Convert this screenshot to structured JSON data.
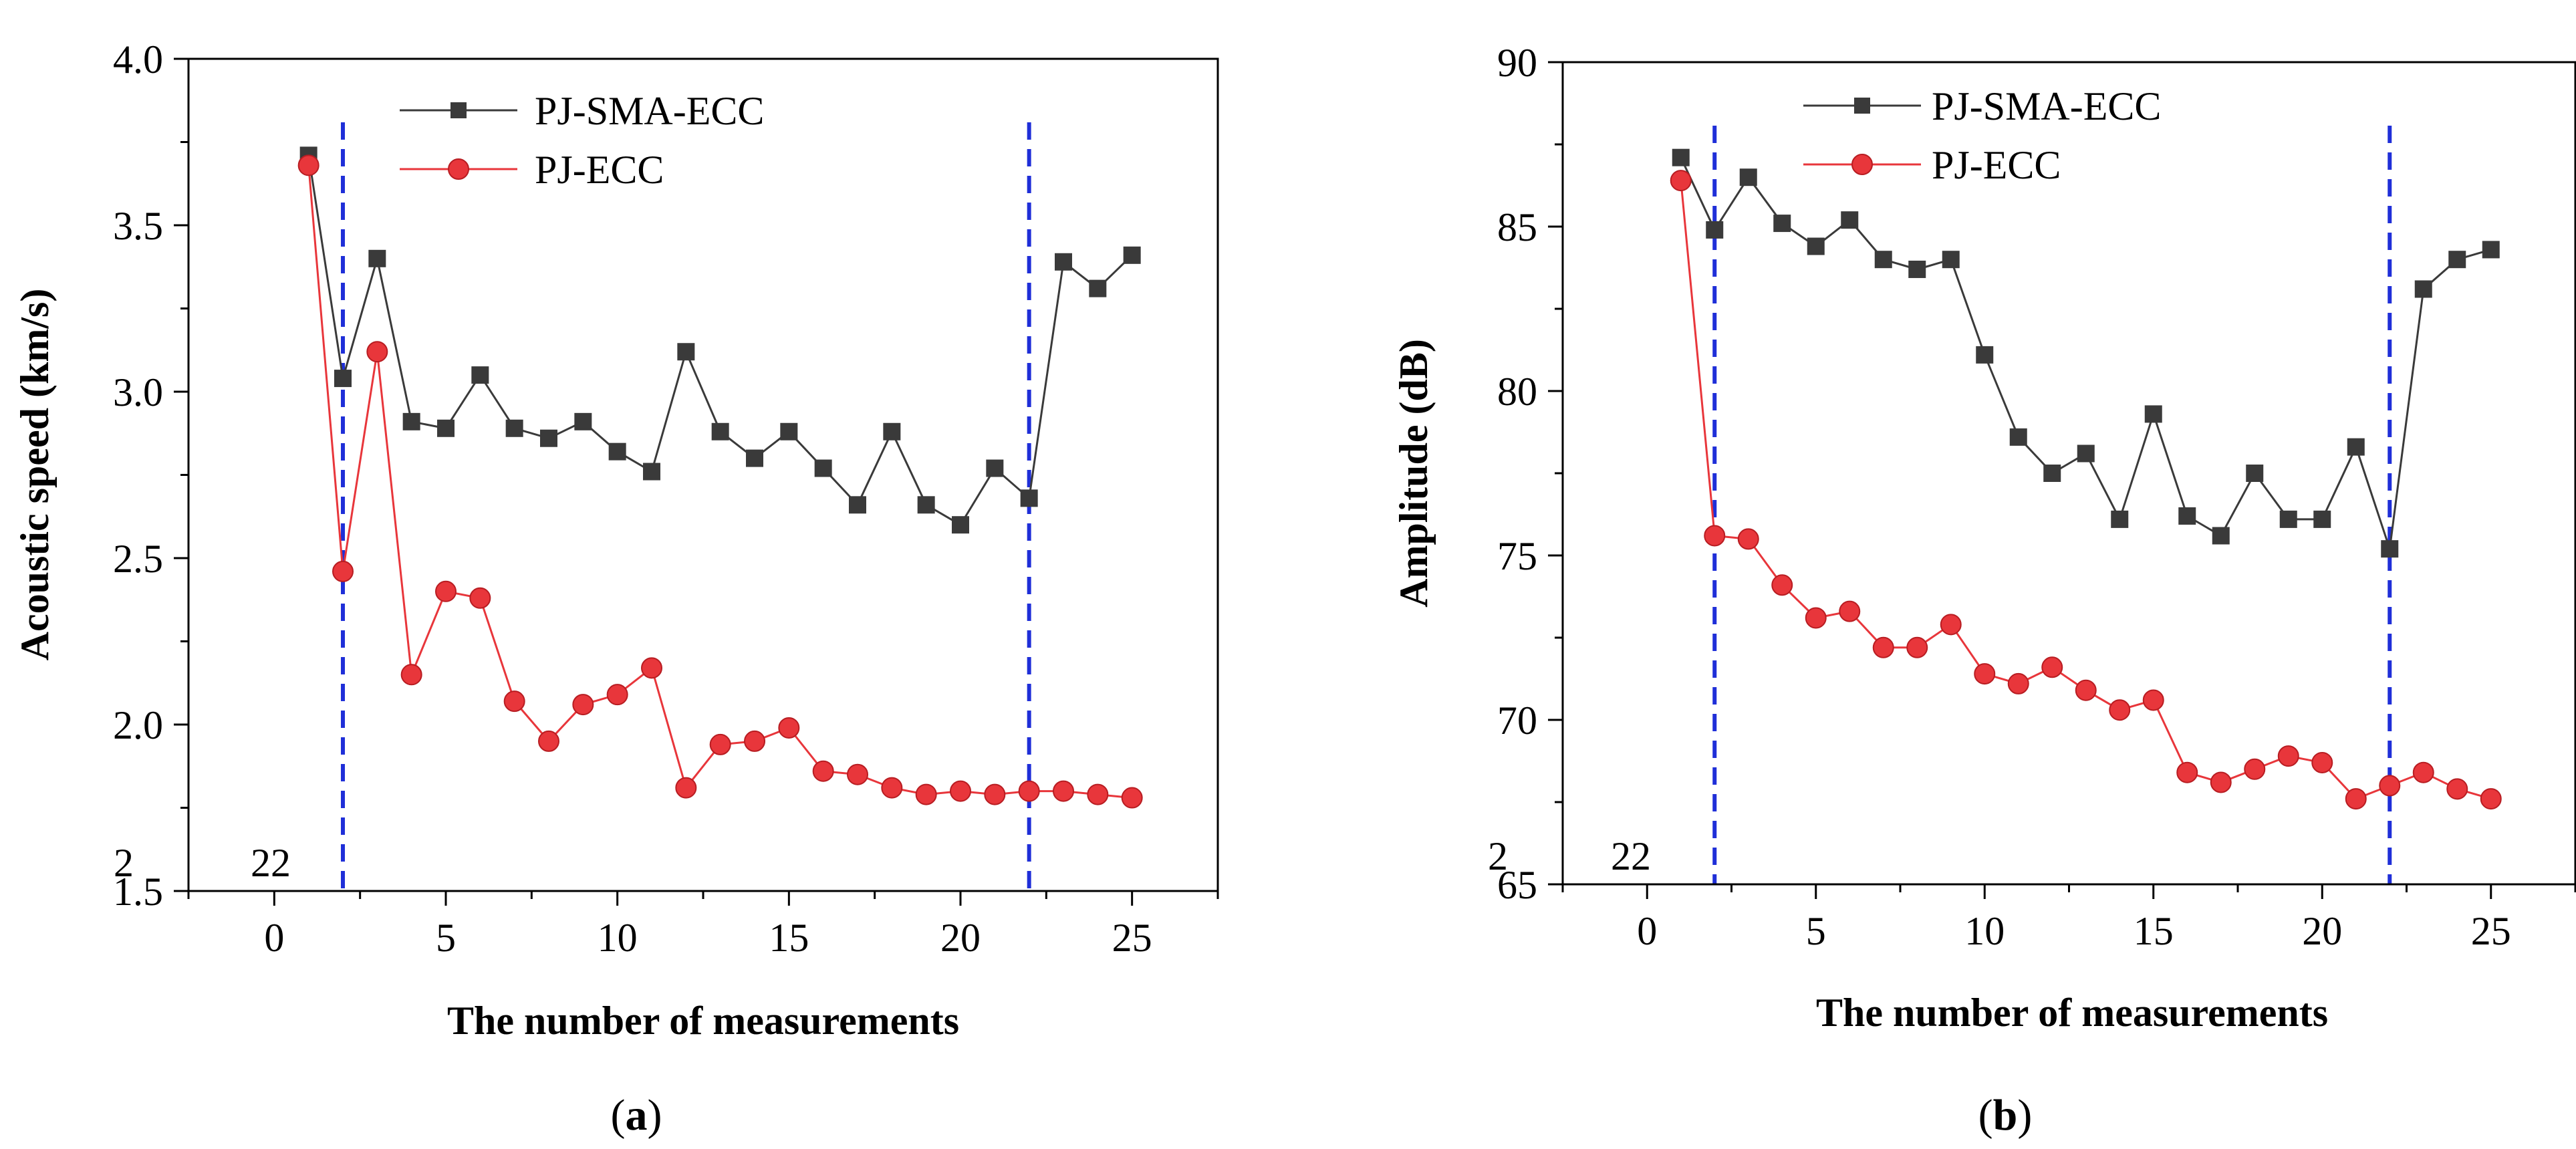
{
  "figure": {
    "panels": [
      {
        "paren_open": "(",
        "letter": "a",
        "paren_close": ")"
      },
      {
        "paren_open": "(",
        "letter": "b",
        "paren_close": ")"
      }
    ]
  },
  "colors": {
    "series_sma": "#3a3a3a",
    "series_ecc": "#e8363b",
    "marker_stroke_ecc": "#b81d22",
    "vline": "#1f2fd8"
  },
  "chart_data": [
    {
      "type": "line",
      "xlabel": "The number of measurements",
      "ylabel": "Acoustic speed (km/s)",
      "xlim": [
        -2.5,
        27.5
      ],
      "ylim": [
        1.5,
        4.0
      ],
      "xticks": [
        0,
        5,
        10,
        15,
        20,
        25
      ],
      "xtick_labels": [
        "0",
        "5",
        "10",
        "15",
        "20",
        "25"
      ],
      "yticks": [
        1.5,
        2.0,
        2.5,
        3.0,
        3.5,
        4.0
      ],
      "ytick_labels": [
        "1.5",
        "2.0",
        "2.5",
        "3.0",
        "3.5",
        "4.0"
      ],
      "grid": false,
      "legend_position": "top-center",
      "x": [
        1,
        2,
        3,
        4,
        5,
        6,
        7,
        8,
        9,
        10,
        11,
        12,
        13,
        14,
        15,
        16,
        17,
        18,
        19,
        20,
        21,
        22,
        23,
        24,
        25
      ],
      "series": [
        {
          "name": "PJ-SMA-ECC",
          "marker": "square",
          "values": [
            3.71,
            3.04,
            3.4,
            2.91,
            2.89,
            3.05,
            2.89,
            2.86,
            2.91,
            2.82,
            2.76,
            3.12,
            2.88,
            2.8,
            2.88,
            2.77,
            2.66,
            2.88,
            2.66,
            2.6,
            2.77,
            2.68,
            3.39,
            3.31,
            3.41
          ]
        },
        {
          "name": "PJ-ECC",
          "marker": "circle",
          "values": [
            3.68,
            2.46,
            3.12,
            2.15,
            2.4,
            2.38,
            2.07,
            1.95,
            2.06,
            2.09,
            2.17,
            1.81,
            1.94,
            1.95,
            1.99,
            1.86,
            1.85,
            1.81,
            1.79,
            1.8,
            1.79,
            1.8,
            1.8,
            1.79,
            1.78
          ]
        }
      ],
      "vlines": [
        {
          "x": 2,
          "label": "2"
        },
        {
          "x": 22,
          "label": "22"
        }
      ]
    },
    {
      "type": "line",
      "xlabel": "The number of measurements",
      "ylabel": "Amplitude (dB)",
      "xlim": [
        -2.5,
        27.5
      ],
      "ylim": [
        65,
        90
      ],
      "xticks": [
        0,
        5,
        10,
        15,
        20,
        25
      ],
      "xtick_labels": [
        "0",
        "5",
        "10",
        "15",
        "20",
        "25"
      ],
      "yticks": [
        65,
        70,
        75,
        80,
        85,
        90
      ],
      "ytick_labels": [
        "65",
        "70",
        "75",
        "80",
        "85",
        "90"
      ],
      "grid": false,
      "legend_position": "top-center",
      "x": [
        1,
        2,
        3,
        4,
        5,
        6,
        7,
        8,
        9,
        10,
        11,
        12,
        13,
        14,
        15,
        16,
        17,
        18,
        19,
        20,
        21,
        22,
        23,
        24,
        25
      ],
      "series": [
        {
          "name": "PJ-SMA-ECC",
          "marker": "square",
          "values": [
            87.1,
            84.9,
            86.5,
            85.1,
            84.4,
            85.2,
            84.0,
            83.7,
            84.0,
            81.1,
            78.6,
            77.5,
            78.1,
            76.1,
            79.3,
            76.2,
            75.6,
            77.5,
            76.1,
            76.1,
            78.3,
            75.2,
            83.1,
            84.0,
            84.3
          ]
        },
        {
          "name": "PJ-ECC",
          "marker": "circle",
          "values": [
            86.4,
            75.6,
            75.5,
            74.1,
            73.1,
            73.3,
            72.2,
            72.2,
            72.9,
            71.4,
            71.1,
            71.6,
            70.9,
            70.3,
            70.6,
            68.4,
            68.1,
            68.5,
            68.9,
            68.7,
            67.6,
            68.0,
            68.4,
            67.9,
            67.6
          ]
        }
      ],
      "vlines": [
        {
          "x": 2,
          "label": "2"
        },
        {
          "x": 22,
          "label": "22"
        }
      ]
    }
  ]
}
